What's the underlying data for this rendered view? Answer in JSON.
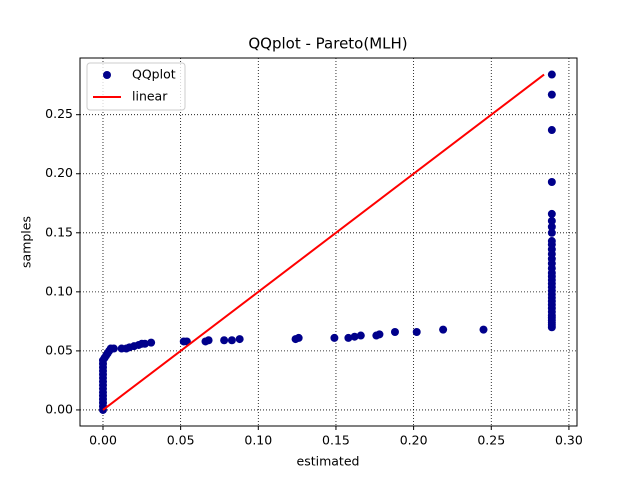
{
  "chart_data": {
    "type": "scatter",
    "title": "QQplot - Pareto(MLH)",
    "xlabel": "estimated",
    "ylabel": "samples",
    "xlim": [
      -0.0148,
      0.3052
    ],
    "ylim": [
      -0.0136,
      0.298
    ],
    "xticks": [
      {
        "value": 0,
        "label": "0.00"
      },
      {
        "value": 0.05,
        "label": "0.05"
      },
      {
        "value": 0.1,
        "label": "0.10"
      },
      {
        "value": 0.15,
        "label": "0.15"
      },
      {
        "value": 0.2,
        "label": "0.20"
      },
      {
        "value": 0.25,
        "label": "0.25"
      },
      {
        "value": 0.3,
        "label": "0.30"
      }
    ],
    "yticks": [
      {
        "value": 0,
        "label": "0.00"
      },
      {
        "value": 0.05,
        "label": "0.05"
      },
      {
        "value": 0.1,
        "label": "0.10"
      },
      {
        "value": 0.15,
        "label": "0.15"
      },
      {
        "value": 0.2,
        "label": "0.20"
      },
      {
        "value": 0.25,
        "label": "0.25"
      }
    ],
    "grid": true,
    "legend": "upper left",
    "series": [
      {
        "name": "QQplot",
        "type": "scatter",
        "color": "#00008b",
        "x": [
          0,
          0,
          0,
          0,
          0,
          0,
          0,
          0,
          0,
          0,
          0,
          0,
          0,
          0,
          0,
          0.001,
          0.002,
          0.003,
          0.004,
          0.005,
          0.007,
          0.012,
          0.015,
          0.017,
          0.02,
          0.023,
          0.025,
          0.027,
          0.031,
          0.052,
          0.054,
          0.066,
          0.068,
          0.078,
          0.083,
          0.088,
          0.124,
          0.126,
          0.149,
          0.158,
          0.162,
          0.166,
          0.176,
          0.178,
          0.188,
          0.202,
          0.219,
          0.245,
          0.289,
          0.289,
          0.289,
          0.289,
          0.289,
          0.289,
          0.289,
          0.289,
          0.289,
          0.289,
          0.289,
          0.289,
          0.289,
          0.289,
          0.289,
          0.289,
          0.289,
          0.289,
          0.289,
          0.289,
          0.289,
          0.289,
          0.289,
          0.289,
          0.289,
          0.289,
          0.289,
          0.289,
          0.289,
          0.289,
          0.289,
          0.289,
          0.289
        ],
        "values": [
          0,
          0.003,
          0.006,
          0.009,
          0.012,
          0.015,
          0.018,
          0.021,
          0.024,
          0.027,
          0.03,
          0.033,
          0.036,
          0.039,
          0.042,
          0.044,
          0.046,
          0.048,
          0.05,
          0.052,
          0.052,
          0.052,
          0.052,
          0.053,
          0.054,
          0.055,
          0.056,
          0.056,
          0.057,
          0.058,
          0.058,
          0.058,
          0.059,
          0.059,
          0.059,
          0.06,
          0.06,
          0.061,
          0.061,
          0.061,
          0.062,
          0.063,
          0.063,
          0.064,
          0.066,
          0.066,
          0.068,
          0.068,
          0.07,
          0.072,
          0.074,
          0.076,
          0.078,
          0.08,
          0.083,
          0.086,
          0.089,
          0.092,
          0.095,
          0.098,
          0.101,
          0.104,
          0.107,
          0.11,
          0.113,
          0.116,
          0.12,
          0.124,
          0.128,
          0.132,
          0.136,
          0.14,
          0.143,
          0.15,
          0.155,
          0.16,
          0.166,
          0.193,
          0.237,
          0.267,
          0.284
        ]
      },
      {
        "name": "linear",
        "type": "line",
        "color": "#ff0000",
        "x": [
          0,
          0.284
        ],
        "values": [
          0,
          0.284
        ]
      }
    ]
  }
}
